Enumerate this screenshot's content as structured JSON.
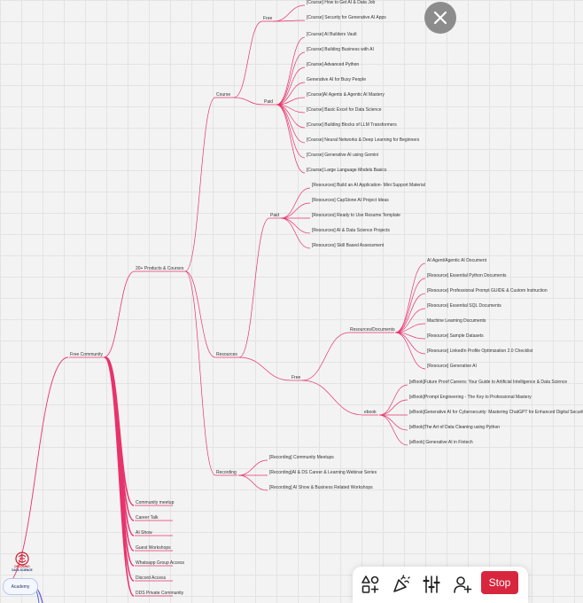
{
  "mindmap": {
    "root": "Free Community",
    "branches": [
      {
        "label": "20+ Products  & Courses",
        "children": [
          {
            "label": "Course",
            "children": [
              {
                "label": "Free",
                "children": [
                  {
                    "label": "[Course] How to Get AI & Data Job"
                  },
                  {
                    "label": "[Course] Security for Generative AI Apps"
                  }
                ]
              },
              {
                "label": "Paid",
                "children": [
                  {
                    "label": "[Course] AI Builders Vault"
                  },
                  {
                    "label": "[Course] Building Business with AI"
                  },
                  {
                    "label": "[Course] Advanced Python"
                  },
                  {
                    "label": "Generative AI for Busy People"
                  },
                  {
                    "label": "[Course]AI Agents & Agentic AI Mastery"
                  },
                  {
                    "label": "[Course] Basic Excel for Data Science"
                  },
                  {
                    "label": "[Course] Building Blocks of LLM Transformers"
                  },
                  {
                    "label": "[Course] Neural Networks & Deep Learning for Beginners"
                  },
                  {
                    "label": "[Course] Generative AI using Gemini"
                  },
                  {
                    "label": "[Course] Large Language Models Basics"
                  }
                ]
              }
            ]
          },
          {
            "label": "Resources",
            "children": [
              {
                "label": "Paid",
                "children": [
                  {
                    "label": "[Resources] Build an AI Application- Mini Support Material"
                  },
                  {
                    "label": "[Resources] CapStone AI Project Ideas"
                  },
                  {
                    "label": "[Resources] Ready to Use Resume Template"
                  },
                  {
                    "label": "[Resources] AI & Data Science Projects"
                  },
                  {
                    "label": "[Resources] Skill Based Assessment"
                  }
                ]
              },
              {
                "label": "Free",
                "children": [
                  {
                    "label": "Resources/Documents",
                    "children": [
                      {
                        "label": "AI Agent/Agentic AI Document"
                      },
                      {
                        "label": "[Resource] Essential Python Documents"
                      },
                      {
                        "label": "[Resource] Professional Prompt GUIDE & Custom Instruction"
                      },
                      {
                        "label": "[Resource] Essential SQL Documents"
                      },
                      {
                        "label": "Machine Learning Documents"
                      },
                      {
                        "label": "[Resource] Sample Datasets"
                      },
                      {
                        "label": "[Resource] LinkedIn Profile Optimization 2.0 Checklist"
                      },
                      {
                        "label": "[Resource] Generative AI"
                      }
                    ]
                  },
                  {
                    "label": "ebook",
                    "children": [
                      {
                        "label": "[eBook]Future Proof Careers: Your Guide to Artificial Intelligence & Data Science"
                      },
                      {
                        "label": "[eBook]Prompt Engineering - The Key to Professional Mastery"
                      },
                      {
                        "label": "[eBook]Generative AI for Cybersecurity: Mastering ChatGPT for Enhanced Digital Security"
                      },
                      {
                        "label": "[eBook]The Art of Data Cleaning using Python"
                      },
                      {
                        "label": "[eBook] Generative AI in Fintech"
                      }
                    ]
                  }
                ]
              }
            ]
          },
          {
            "label": "Recording",
            "children": [
              {
                "label": "[Recording] Community Meetups"
              },
              {
                "label": "[Recording]AI & DS Career & Learning Webinar Series"
              },
              {
                "label": "[Recording] AI Show & Business Related Workshops"
              }
            ]
          }
        ]
      },
      {
        "label": "Community meetup"
      },
      {
        "label": "Career Talk"
      },
      {
        "label": "AI Show"
      },
      {
        "label": "Guest Workshops"
      },
      {
        "label": "Whatsapp Group Access"
      },
      {
        "label": "Discord Access"
      },
      {
        "label": "DDS Private Community"
      }
    ]
  },
  "logo": {
    "line1": "DECODING",
    "line2": "DATA SCIENCE"
  },
  "sidebar_tab": "Academy",
  "toolbar": {
    "stop_label": "Stop",
    "icons": [
      "shapes-icon",
      "party-popper-icon",
      "sliders-icon",
      "add-user-icon"
    ]
  },
  "colors": {
    "edge": "#e8336d",
    "stop": "#d7263d",
    "close_bg": "#8c8c8c"
  }
}
